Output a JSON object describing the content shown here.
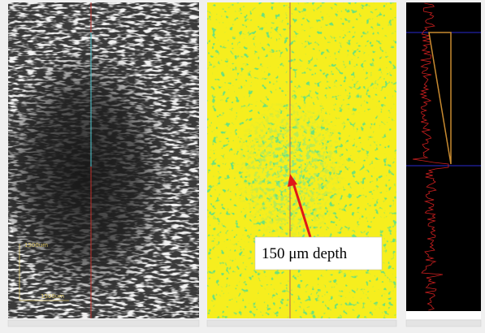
{
  "scale_bar": {
    "vertical": "1500um",
    "horizontal": "1500um"
  },
  "annotation": {
    "label": "150 μm depth"
  }
}
